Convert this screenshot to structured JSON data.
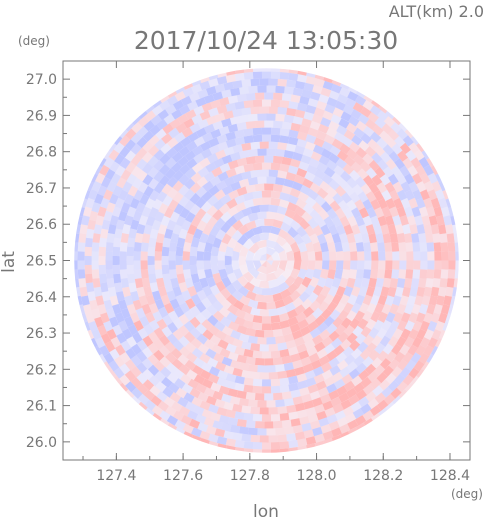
{
  "header": {
    "altitude_label": "ALT(km)  2.0",
    "timestamp": "2017/10/24 13:05:30"
  },
  "chart_data": {
    "type": "heatmap",
    "title": "2017/10/24 13:05:30",
    "xlabel": "lon",
    "ylabel": "lat",
    "x_unit": "(deg)",
    "y_unit": "(deg)",
    "xlim": [
      127.24,
      128.46
    ],
    "ylim": [
      25.95,
      27.05
    ],
    "x_ticks": [
      "127.4",
      "127.6",
      "127.8",
      "128.0",
      "128.2",
      "128.4"
    ],
    "y_ticks": [
      "26.0",
      "26.1",
      "26.2",
      "26.3",
      "26.4",
      "26.5",
      "26.6",
      "26.7",
      "26.8",
      "26.9",
      "27.0"
    ],
    "center": {
      "lon": 127.85,
      "lat": 26.5
    },
    "radius_deg_lat": 0.53,
    "grid": false,
    "colors": {
      "positive": "#ffb6b6",
      "negative": "#bfc6ff",
      "axis": "#777777"
    }
  }
}
